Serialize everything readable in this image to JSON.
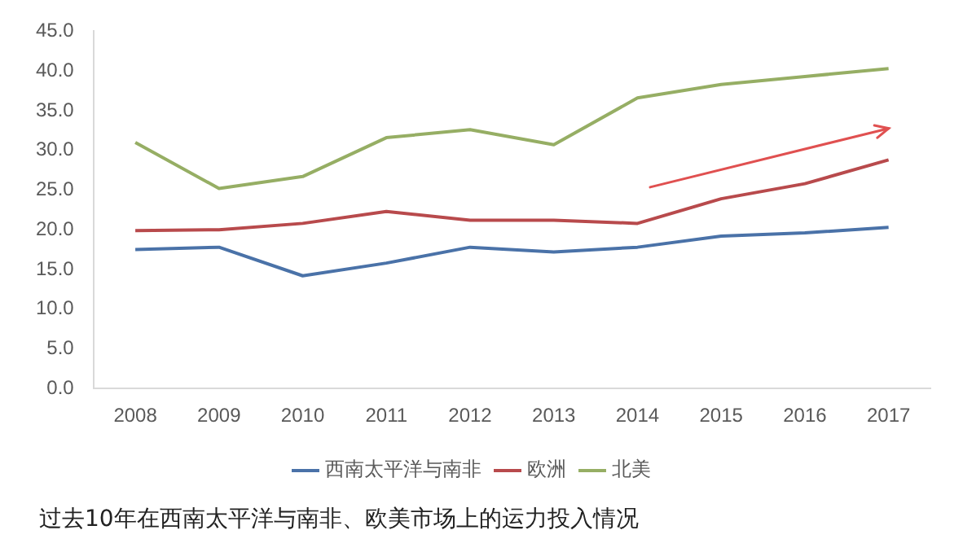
{
  "chart_data": {
    "type": "line",
    "categories": [
      "2008",
      "2009",
      "2010",
      "2011",
      "2012",
      "2013",
      "2014",
      "2015",
      "2016",
      "2017"
    ],
    "series": [
      {
        "name": "西南太平洋与南非",
        "color": "#4a72a8",
        "values": [
          17.5,
          17.8,
          14.2,
          15.8,
          17.8,
          17.2,
          17.8,
          19.2,
          19.6,
          20.3
        ]
      },
      {
        "name": "欧洲",
        "color": "#b84a4c",
        "values": [
          19.9,
          20.0,
          20.8,
          22.3,
          21.2,
          21.2,
          20.8,
          23.9,
          25.8,
          28.8
        ]
      },
      {
        "name": "北美",
        "color": "#96ae64",
        "values": [
          31.0,
          25.2,
          26.7,
          31.6,
          32.6,
          30.7,
          36.6,
          38.3,
          39.3,
          40.3
        ]
      }
    ],
    "ylim": [
      0,
      45
    ],
    "yticks": [
      {
        "value": 0,
        "label": "0.0"
      },
      {
        "value": 5,
        "label": "5.0"
      },
      {
        "value": 10,
        "label": "10.0"
      },
      {
        "value": 15,
        "label": "15.0"
      },
      {
        "value": 20,
        "label": "20.0"
      },
      {
        "value": 25,
        "label": "25.0"
      },
      {
        "value": 30,
        "label": "30.0"
      },
      {
        "value": 35,
        "label": "35.0"
      },
      {
        "value": 40,
        "label": "40.0"
      },
      {
        "value": 45,
        "label": "45.0"
      }
    ],
    "grid": false,
    "legend": "bottom",
    "marker": "none",
    "line_style": "solid",
    "annotations": [
      "过去10年在西南太平洋与南非、欧美市场上的运力投入情况"
    ]
  }
}
